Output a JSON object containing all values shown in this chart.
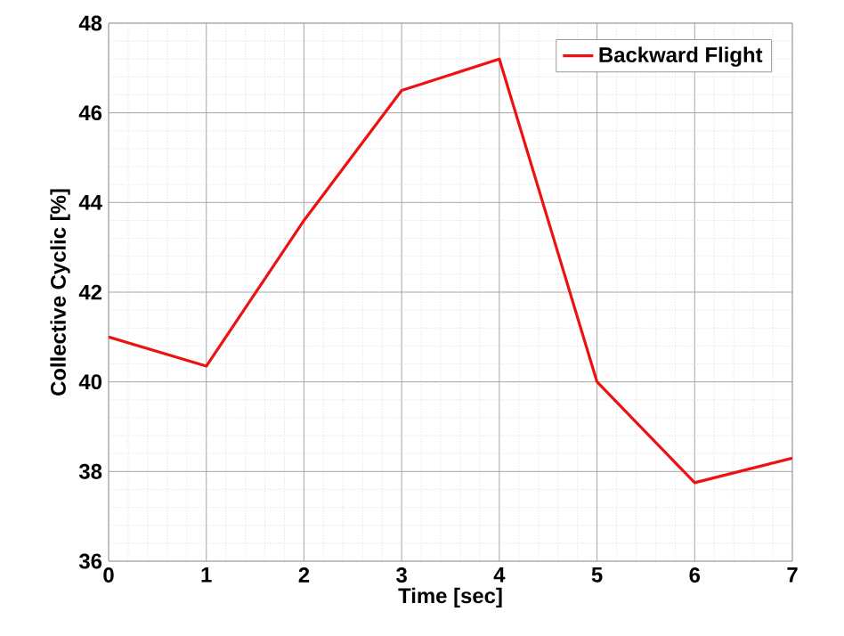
{
  "chart_data": {
    "type": "line",
    "xlabel": "Time [sec]",
    "ylabel": "Collective Cyclic [%]",
    "x": [
      0,
      1,
      2,
      3,
      4,
      5,
      6,
      7
    ],
    "series": [
      {
        "name": "Backward Flight",
        "color": "#ee1111",
        "values": [
          41.0,
          40.35,
          43.6,
          46.5,
          47.2,
          40.0,
          37.75,
          38.3
        ]
      }
    ],
    "xlim": [
      0,
      7
    ],
    "ylim": [
      36,
      48
    ],
    "xticks": [
      0,
      1,
      2,
      3,
      4,
      5,
      6,
      7
    ],
    "yticks": [
      36,
      38,
      40,
      42,
      44,
      46,
      48
    ],
    "grid": true,
    "legend": "top right",
    "line_style": "solid",
    "marker": "none"
  }
}
